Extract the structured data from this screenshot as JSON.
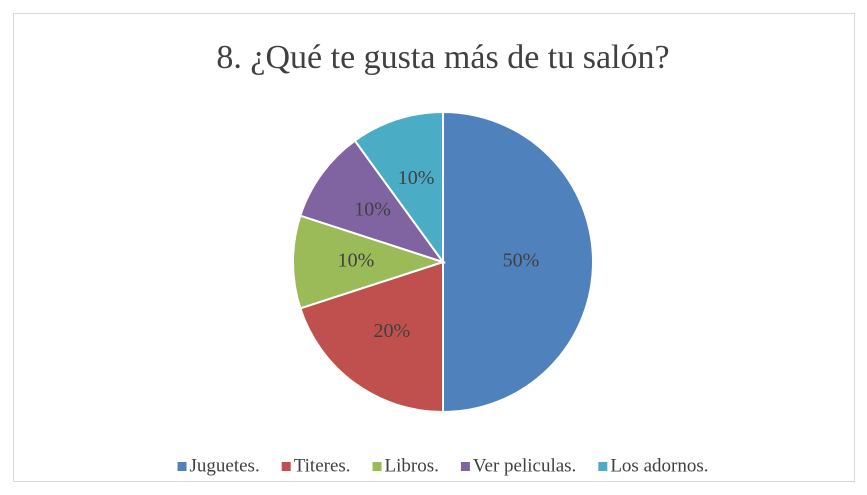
{
  "chart_data": {
    "type": "pie",
    "title": "8. ¿Qué te gusta más de tu salón?",
    "categories": [
      "Juguetes.",
      "Titeres.",
      "Libros.",
      "Ver peliculas.",
      "Los adornos."
    ],
    "values": [
      50,
      20,
      10,
      10,
      10
    ],
    "value_labels": [
      "50%",
      "20%",
      "10%",
      "10%",
      "10%"
    ],
    "colors": [
      "#4f81bd",
      "#c0504d",
      "#9bbb59",
      "#8064a2",
      "#4bacc6"
    ],
    "legend": "bottom"
  }
}
